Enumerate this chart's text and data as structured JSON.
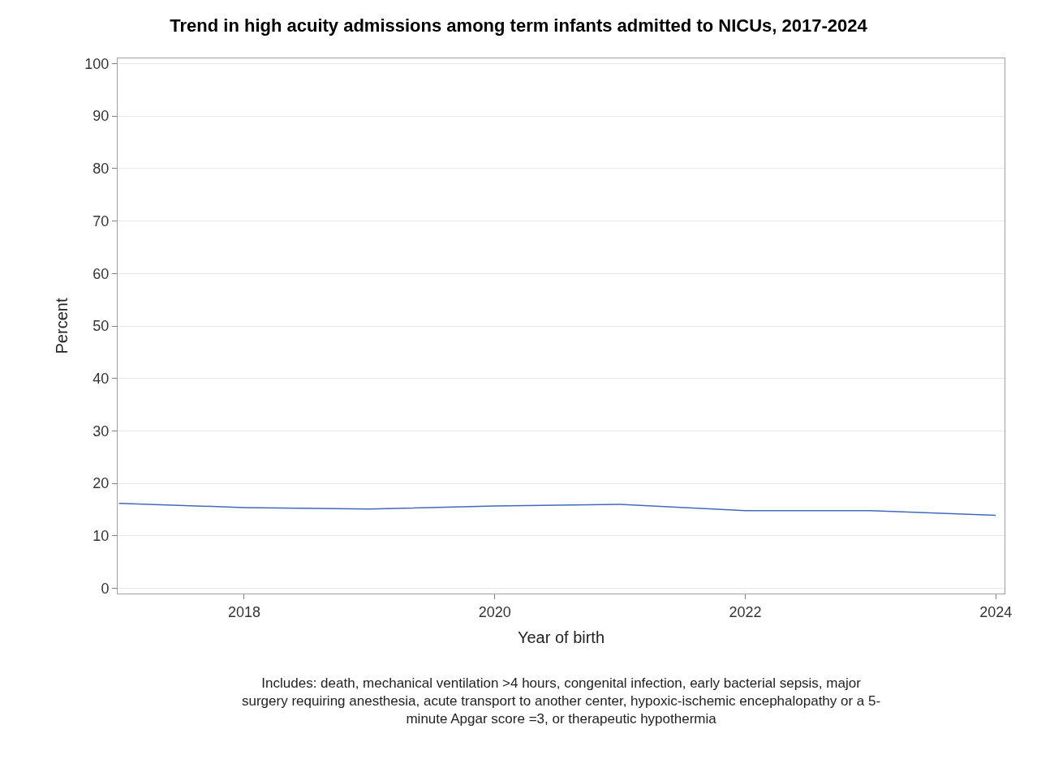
{
  "chart_data": {
    "type": "line",
    "title": "Trend in high acuity admissions among term infants admitted to NICUs, 2017-2024",
    "xlabel": "Year of birth",
    "ylabel": "Percent",
    "x": [
      2017,
      2018,
      2019,
      2020,
      2021,
      2022,
      2023,
      2024
    ],
    "series": [
      {
        "color": "#4468c0",
        "values": [
          16.2,
          15.4,
          15.1,
          15.7,
          16.0,
          14.8,
          14.8,
          13.9
        ]
      }
    ],
    "xlim": [
      2016.99,
      2024.07
    ],
    "xticks": [
      2018,
      2020,
      2022,
      2024
    ],
    "ylim": [
      -1,
      101
    ],
    "yticks": [
      0,
      10,
      20,
      30,
      40,
      50,
      60,
      70,
      80,
      90,
      100
    ],
    "grid": "y",
    "marker": "none",
    "line_style": "solid",
    "annotations": [
      "Includes: death, mechanical ventilation >4 hours, congenital infection, early bacterial sepsis, major surgery requiring anesthesia, acute transport to another center, hypoxic-ischemic encephalopathy or a 5-minute Apgar score =3, or therapeutic hypothermia"
    ]
  }
}
